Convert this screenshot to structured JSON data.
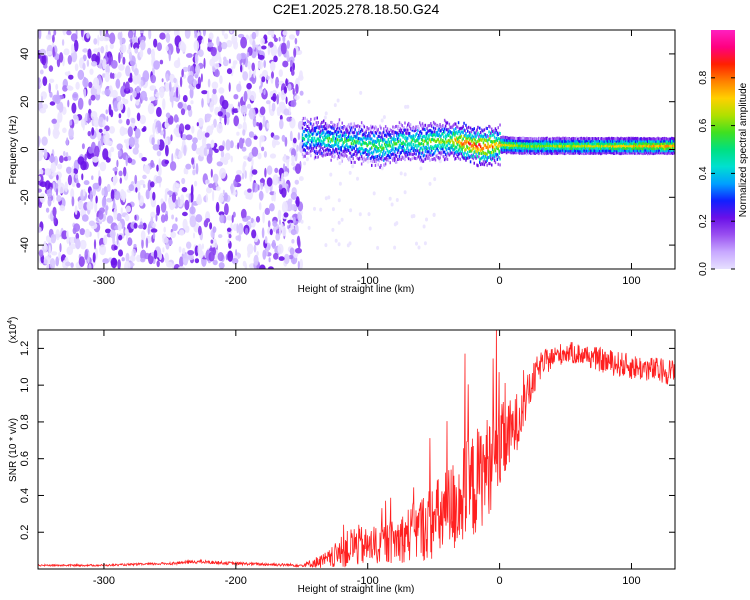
{
  "title": "C2E1.2025.278.18.50.G24",
  "chart_data": [
    {
      "type": "heatmap",
      "name": "spectrogram",
      "xlabel": "Height of straight line (km)",
      "ylabel": "Frequency (Hz)",
      "xlim": [
        -350,
        133
      ],
      "ylim": [
        -50,
        50
      ],
      "xticks": [
        -300,
        -200,
        -100,
        0,
        100
      ],
      "yticks": [
        -40,
        -20,
        0,
        20,
        40
      ],
      "colorbar": {
        "label": "Normalized spectral amplitude",
        "range": [
          0,
          1
        ],
        "ticks": [
          "0.0",
          "0.2",
          "0.4",
          "0.6",
          "0.8"
        ],
        "tick_values": [
          0.0,
          0.2,
          0.4,
          0.6,
          0.8
        ],
        "colors": [
          "#e6e0ff",
          "#c8a8ff",
          "#9a50f0",
          "#6a10e8",
          "#1020ff",
          "#00a0ff",
          "#00e0d0",
          "#00e080",
          "#40e020",
          "#b0e000",
          "#ffd000",
          "#ff8000",
          "#ff2000",
          "#ff0080",
          "#ff20c0"
        ]
      },
      "noise_region_x": [
        -350,
        -150
      ],
      "signal_track": [
        {
          "x": -150,
          "f": 5,
          "amp": 0.45
        },
        {
          "x": -130,
          "f": 4,
          "amp": 0.5
        },
        {
          "x": -110,
          "f": 3,
          "amp": 0.5
        },
        {
          "x": -90,
          "f": 1,
          "amp": 0.55
        },
        {
          "x": -75,
          "f": 3,
          "amp": 0.5
        },
        {
          "x": -60,
          "f": 3,
          "amp": 0.55
        },
        {
          "x": -40,
          "f": 4,
          "amp": 0.6
        },
        {
          "x": -30,
          "f": 3,
          "amp": 0.8
        },
        {
          "x": -15,
          "f": 1,
          "amp": 0.85
        },
        {
          "x": 0,
          "f": 2,
          "amp": 0.7
        },
        {
          "x": 20,
          "f": 1.5,
          "amp": 0.6
        },
        {
          "x": 60,
          "f": 1.5,
          "amp": 0.65
        },
        {
          "x": 100,
          "f": 1.5,
          "amp": 0.7
        },
        {
          "x": 133,
          "f": 1.5,
          "amp": 0.75
        }
      ]
    },
    {
      "type": "line",
      "name": "snr",
      "xlabel": "Height of straight line (km)",
      "ylabel": "SNR (10 * v/v)",
      "multiplier_label": "(x10",
      "multiplier_exp": "4",
      "multiplier_close": ")",
      "color": "#ff2020",
      "xlim": [
        -350,
        133
      ],
      "ylim": [
        0,
        1.3
      ],
      "xticks": [
        -300,
        -200,
        -100,
        0,
        100
      ],
      "yticks": [
        0.2,
        0.4,
        0.6,
        0.8,
        1.0,
        1.2
      ],
      "ytick_labels": [
        "0.2",
        "0.4",
        "0.6",
        "0.8",
        "1.0",
        "1.2"
      ],
      "x": [
        -350,
        -300,
        -250,
        -230,
        -200,
        -150,
        -130,
        -110,
        -100,
        -80,
        -60,
        -40,
        -30,
        -20,
        -10,
        0,
        10,
        20,
        30,
        40,
        50,
        60,
        70,
        80,
        100,
        120,
        133
      ],
      "y": [
        0.02,
        0.02,
        0.03,
        0.04,
        0.03,
        0.02,
        0.05,
        0.13,
        0.12,
        0.15,
        0.22,
        0.3,
        0.38,
        0.45,
        0.55,
        0.65,
        0.75,
        0.92,
        1.1,
        1.15,
        1.18,
        1.17,
        1.15,
        1.13,
        1.1,
        1.08,
        1.07
      ],
      "noise": [
        0.005,
        0.005,
        0.007,
        0.01,
        0.008,
        0.008,
        0.05,
        0.12,
        0.1,
        0.12,
        0.18,
        0.25,
        0.28,
        0.3,
        0.28,
        0.25,
        0.18,
        0.12,
        0.08,
        0.06,
        0.06,
        0.06,
        0.06,
        0.07,
        0.07,
        0.07,
        0.07
      ]
    }
  ]
}
